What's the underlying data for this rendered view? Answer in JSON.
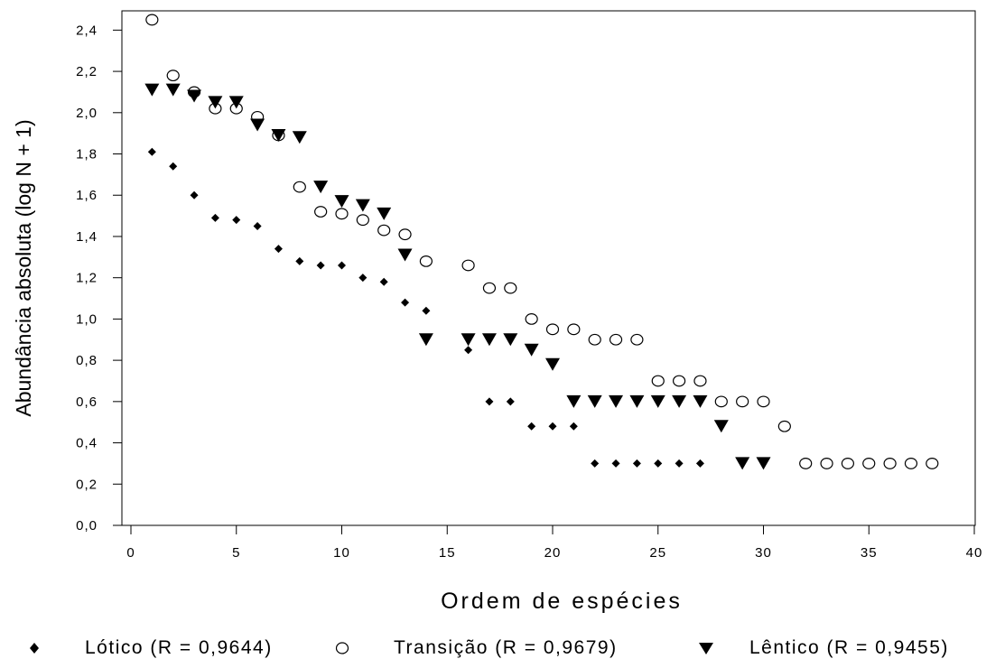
{
  "chart_data": {
    "type": "scatter",
    "title": "",
    "xlabel": "Ordem de espécies",
    "ylabel": "Abundância absoluta (log N + 1)",
    "xlim": [
      0,
      40
    ],
    "ylim": [
      0,
      2.4
    ],
    "xticks": [
      0,
      5,
      10,
      15,
      20,
      25,
      30,
      35,
      40
    ],
    "xtick_labels": [
      "0",
      "5",
      "10",
      "15",
      "20",
      "25",
      "30",
      "35",
      "40"
    ],
    "yticks": [
      0,
      0.2,
      0.4,
      0.6,
      0.8,
      1.0,
      1.2,
      1.4,
      1.6,
      1.8,
      2.0,
      2.2,
      2.4
    ],
    "ytick_labels": [
      "0,0",
      "0,2",
      "0,4",
      "0,6",
      "0,8",
      "1,0",
      "1,2",
      "1,4",
      "1,6",
      "1,8",
      "2,0",
      "2,2",
      "2,4"
    ],
    "grid": false,
    "legend_placement": "bottom",
    "series": [
      {
        "name": "Lótico (R = 0,9644)",
        "marker": "diamond-filled",
        "color": "#000000",
        "x": [
          1,
          2,
          3,
          4,
          5,
          6,
          7,
          8,
          9,
          10,
          11,
          12,
          13,
          14,
          16,
          17,
          18,
          19,
          20,
          21,
          22,
          23,
          24,
          25,
          26,
          27
        ],
        "y": [
          1.81,
          1.74,
          1.6,
          1.49,
          1.48,
          1.45,
          1.34,
          1.28,
          1.26,
          1.26,
          1.2,
          1.18,
          1.08,
          1.04,
          0.85,
          0.6,
          0.6,
          0.48,
          0.48,
          0.48,
          0.3,
          0.3,
          0.3,
          0.3,
          0.3,
          0.3
        ]
      },
      {
        "name": "Transição (R = 0,9679)",
        "marker": "circle-open",
        "color": "#000000",
        "x": [
          1,
          2,
          3,
          4,
          5,
          6,
          7,
          8,
          9,
          10,
          11,
          12,
          13,
          14,
          16,
          17,
          18,
          19,
          20,
          21,
          22,
          23,
          24,
          25,
          26,
          27,
          28,
          29,
          30,
          31,
          32,
          33,
          34,
          35,
          36,
          37,
          38
        ],
        "y": [
          2.45,
          2.18,
          2.1,
          2.02,
          2.02,
          1.98,
          1.89,
          1.64,
          1.52,
          1.51,
          1.48,
          1.43,
          1.41,
          1.28,
          1.26,
          1.15,
          1.15,
          1.0,
          0.95,
          0.95,
          0.9,
          0.9,
          0.9,
          0.7,
          0.7,
          0.7,
          0.6,
          0.6,
          0.6,
          0.48,
          0.3,
          0.3,
          0.3,
          0.3,
          0.3,
          0.3,
          0.3
        ]
      },
      {
        "name": "Lêntico (R = 0,9455)",
        "marker": "triangle-down-filled",
        "color": "#000000",
        "x": [
          1,
          2,
          3,
          4,
          5,
          6,
          7,
          8,
          9,
          10,
          11,
          12,
          13,
          14,
          16,
          17,
          18,
          19,
          20,
          21,
          22,
          23,
          24,
          25,
          26,
          27,
          28,
          29,
          30
        ],
        "y": [
          2.11,
          2.11,
          2.08,
          2.05,
          2.05,
          1.94,
          1.89,
          1.88,
          1.64,
          1.57,
          1.55,
          1.51,
          1.31,
          0.9,
          0.9,
          0.9,
          0.9,
          0.85,
          0.78,
          0.6,
          0.6,
          0.6,
          0.6,
          0.6,
          0.6,
          0.6,
          0.48,
          0.3,
          0.3
        ]
      }
    ]
  }
}
